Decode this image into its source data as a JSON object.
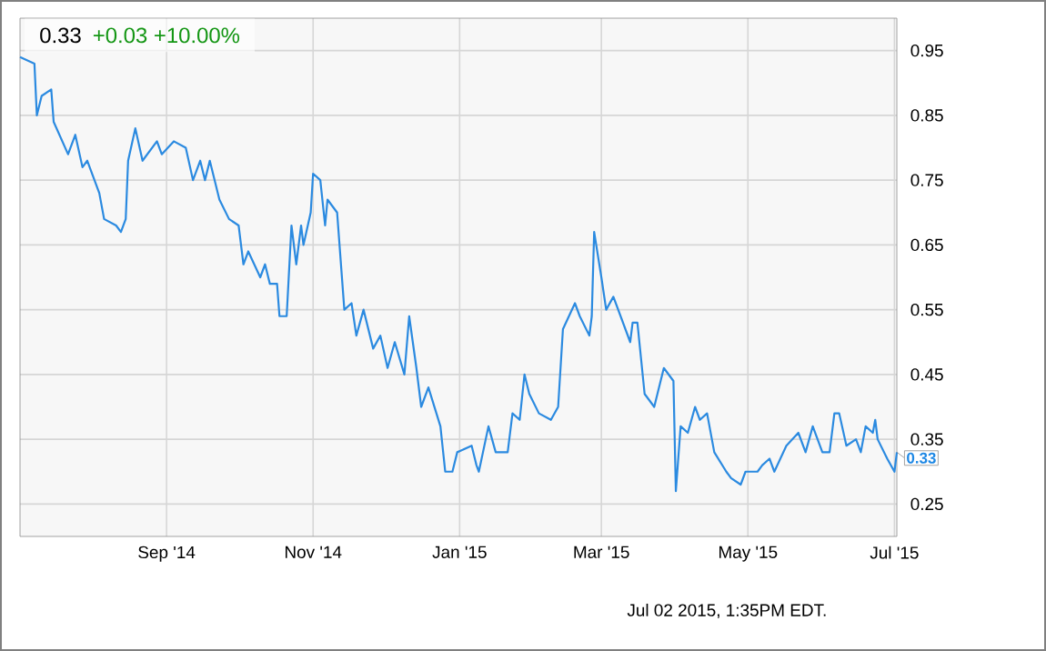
{
  "chart_data": {
    "type": "line",
    "title": "0.33",
    "subtitle": "+0.03  +10.00%",
    "x": [
      "2014-07-02",
      "2014-07-08",
      "2014-07-09",
      "2014-07-11",
      "2014-07-15",
      "2014-07-16",
      "2014-07-22",
      "2014-07-25",
      "2014-07-28",
      "2014-07-30",
      "2014-08-04",
      "2014-08-06",
      "2014-08-11",
      "2014-08-13",
      "2014-08-15",
      "2014-08-16",
      "2014-08-19",
      "2014-08-22",
      "2014-08-28",
      "2014-08-30",
      "2014-09-04",
      "2014-09-09",
      "2014-09-12",
      "2014-09-15",
      "2014-09-17",
      "2014-09-19",
      "2014-09-23",
      "2014-09-27",
      "2014-10-01",
      "2014-10-03",
      "2014-10-05",
      "2014-10-10",
      "2014-10-12",
      "2014-10-14",
      "2014-10-17",
      "2014-10-18",
      "2014-10-21",
      "2014-10-23",
      "2014-10-25",
      "2014-10-27",
      "2014-10-28",
      "2014-10-31",
      "2014-11-01",
      "2014-11-04",
      "2014-11-06",
      "2014-11-07",
      "2014-11-11",
      "2014-11-14",
      "2014-11-17",
      "2014-11-19",
      "2014-11-22",
      "2014-11-26",
      "2014-11-29",
      "2014-12-02",
      "2014-12-05",
      "2014-12-09",
      "2014-12-11",
      "2014-12-14",
      "2014-12-16",
      "2014-12-19",
      "2014-12-24",
      "2014-12-26",
      "2014-12-29",
      "2014-12-31",
      "2015-01-06",
      "2015-01-08",
      "2015-01-09",
      "2015-01-13",
      "2015-01-16",
      "2015-01-21",
      "2015-01-23",
      "2015-01-26",
      "2015-01-28",
      "2015-01-30",
      "2015-02-03",
      "2015-02-08",
      "2015-02-11",
      "2015-02-13",
      "2015-02-18",
      "2015-02-20",
      "2015-02-24",
      "2015-02-25",
      "2015-02-26",
      "2015-03-01",
      "2015-03-03",
      "2015-03-06",
      "2015-03-10",
      "2015-03-13",
      "2015-03-14",
      "2015-03-16",
      "2015-03-19",
      "2015-03-21",
      "2015-03-23",
      "2015-03-27",
      "2015-03-31",
      "2015-04-01",
      "2015-04-03",
      "2015-04-06",
      "2015-04-09",
      "2015-04-11",
      "2015-04-14",
      "2015-04-17",
      "2015-04-22",
      "2015-04-24",
      "2015-04-28",
      "2015-04-30",
      "2015-05-05",
      "2015-05-07",
      "2015-05-10",
      "2015-05-12",
      "2015-05-17",
      "2015-05-22",
      "2015-05-25",
      "2015-05-28",
      "2015-06-01",
      "2015-06-04",
      "2015-06-06",
      "2015-06-08",
      "2015-06-11",
      "2015-06-15",
      "2015-06-17",
      "2015-06-19",
      "2015-06-22",
      "2015-06-23",
      "2015-06-24",
      "2015-06-28",
      "2015-07-01",
      "2015-07-02"
    ],
    "values": [
      0.94,
      0.93,
      0.85,
      0.88,
      0.89,
      0.84,
      0.79,
      0.82,
      0.77,
      0.78,
      0.73,
      0.69,
      0.68,
      0.67,
      0.69,
      0.78,
      0.83,
      0.78,
      0.81,
      0.79,
      0.81,
      0.8,
      0.75,
      0.78,
      0.75,
      0.78,
      0.72,
      0.69,
      0.68,
      0.62,
      0.64,
      0.6,
      0.62,
      0.59,
      0.59,
      0.54,
      0.54,
      0.68,
      0.62,
      0.68,
      0.65,
      0.7,
      0.76,
      0.75,
      0.68,
      0.72,
      0.7,
      0.55,
      0.56,
      0.51,
      0.55,
      0.49,
      0.51,
      0.46,
      0.5,
      0.45,
      0.54,
      0.46,
      0.4,
      0.43,
      0.37,
      0.3,
      0.3,
      0.33,
      0.34,
      0.31,
      0.3,
      0.37,
      0.33,
      0.33,
      0.39,
      0.38,
      0.45,
      0.42,
      0.39,
      0.38,
      0.4,
      0.52,
      0.56,
      0.54,
      0.51,
      0.54,
      0.67,
      0.6,
      0.55,
      0.57,
      0.53,
      0.5,
      0.53,
      0.53,
      0.42,
      0.41,
      0.4,
      0.46,
      0.44,
      0.27,
      0.37,
      0.36,
      0.4,
      0.38,
      0.39,
      0.33,
      0.3,
      0.29,
      0.28,
      0.3,
      0.3,
      0.31,
      0.32,
      0.3,
      0.34,
      0.36,
      0.33,
      0.37,
      0.33,
      0.33,
      0.39,
      0.39,
      0.34,
      0.35,
      0.33,
      0.37,
      0.36,
      0.38,
      0.35,
      0.32,
      0.3,
      0.33
    ],
    "color": "#2b8ae0",
    "xlim": [
      "2014-07-02",
      "2015-07-02"
    ],
    "xticks": [
      {
        "value": "2014-09-01",
        "label": "Sep '14"
      },
      {
        "value": "2014-11-01",
        "label": "Nov '14"
      },
      {
        "value": "2015-01-01",
        "label": "Jan '15"
      },
      {
        "value": "2015-03-01",
        "label": "Mar '15"
      },
      {
        "value": "2015-05-01",
        "label": "May '15"
      },
      {
        "value": "2015-07-01",
        "label": "Jul '15"
      }
    ],
    "ylim": [
      0.2,
      1.0
    ],
    "yticks": [
      0.25,
      0.35,
      0.45,
      0.55,
      0.65,
      0.75,
      0.85,
      0.95
    ],
    "grid": true,
    "annotations": [
      {
        "text": "0.33",
        "x": "2015-07-02",
        "y": 0.33
      },
      "Jul 02 2015, 1:35PM EDT."
    ]
  }
}
